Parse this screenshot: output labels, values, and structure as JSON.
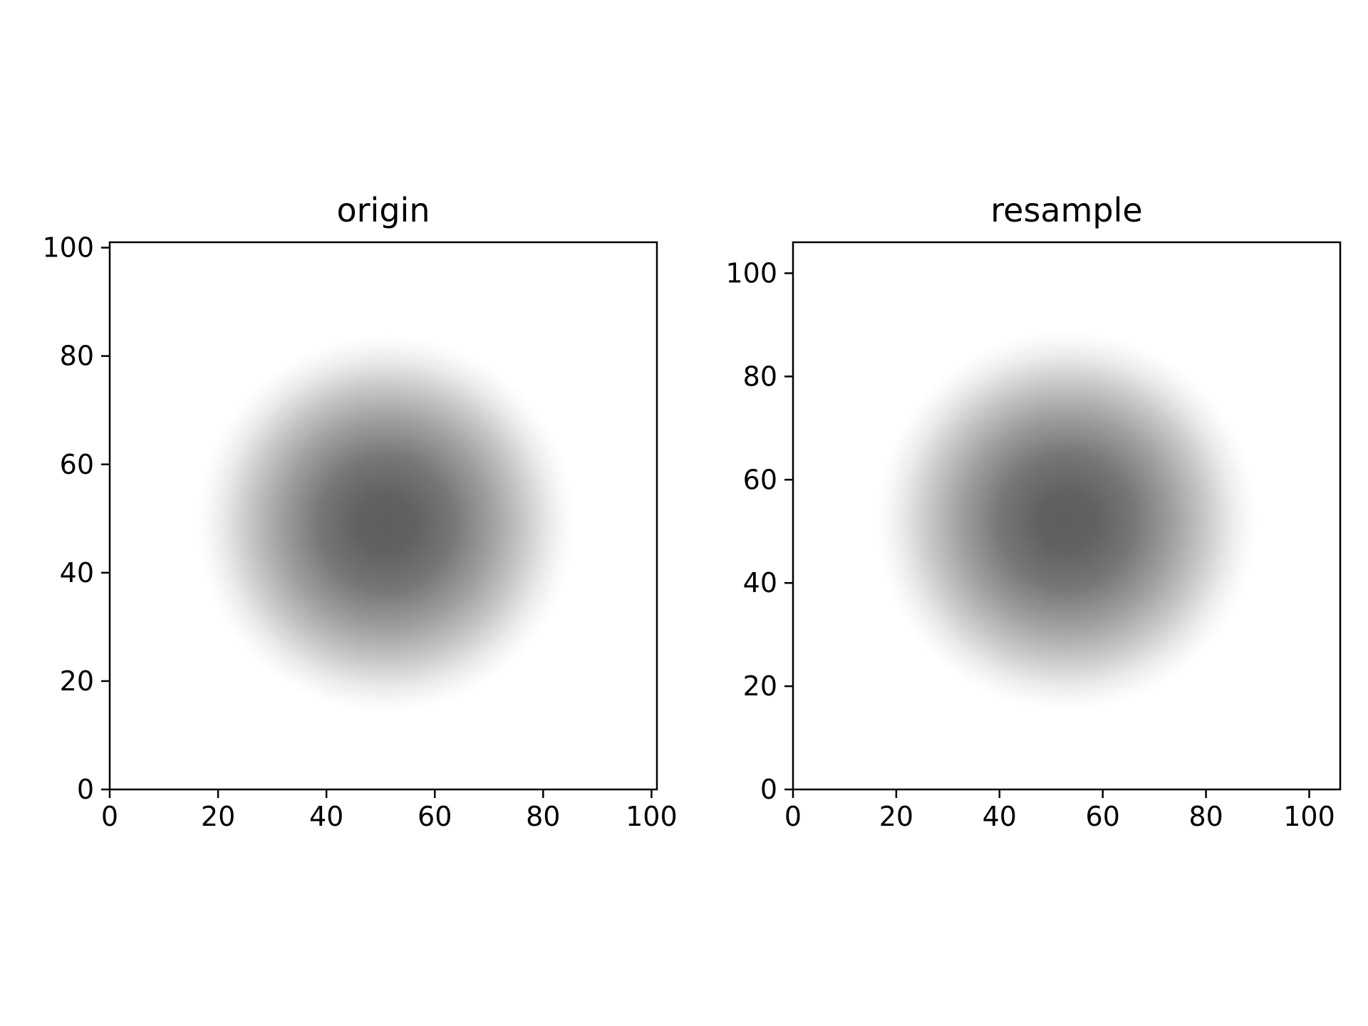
{
  "chart_data": [
    {
      "type": "heatmap",
      "title": "origin",
      "xlabel": "",
      "ylabel": "",
      "xlim": [
        0,
        101
      ],
      "ylim": [
        0,
        101
      ],
      "x_ticks": [
        0,
        20,
        40,
        60,
        80,
        100
      ],
      "y_ticks": [
        0,
        20,
        40,
        60,
        80,
        100
      ],
      "x_tick_labels": [
        "0",
        "20",
        "40",
        "60",
        "80",
        "100"
      ],
      "y_tick_labels": [
        "0",
        "20",
        "40",
        "60",
        "80",
        "100"
      ],
      "colormap": "Greys",
      "grid": false,
      "field": {
        "shape": "radial blob",
        "center": [
          51,
          49
        ],
        "radius": 35,
        "peak_gray": "#5e5e5e",
        "background": "#ffffff"
      }
    },
    {
      "type": "heatmap",
      "title": "resample",
      "xlabel": "",
      "ylabel": "",
      "xlim": [
        0,
        106
      ],
      "ylim": [
        0,
        106
      ],
      "x_ticks": [
        0,
        20,
        40,
        60,
        80,
        100
      ],
      "y_ticks": [
        0,
        20,
        40,
        60,
        80,
        100
      ],
      "x_tick_labels": [
        "0",
        "20",
        "40",
        "60",
        "80",
        "100"
      ],
      "y_tick_labels": [
        "0",
        "20",
        "40",
        "60",
        "80",
        "100"
      ],
      "colormap": "Greys",
      "grid": false,
      "field": {
        "shape": "radial blob",
        "center": [
          53,
          52
        ],
        "radius": 37,
        "peak_gray": "#5e5e5e",
        "background": "#ffffff"
      }
    }
  ]
}
